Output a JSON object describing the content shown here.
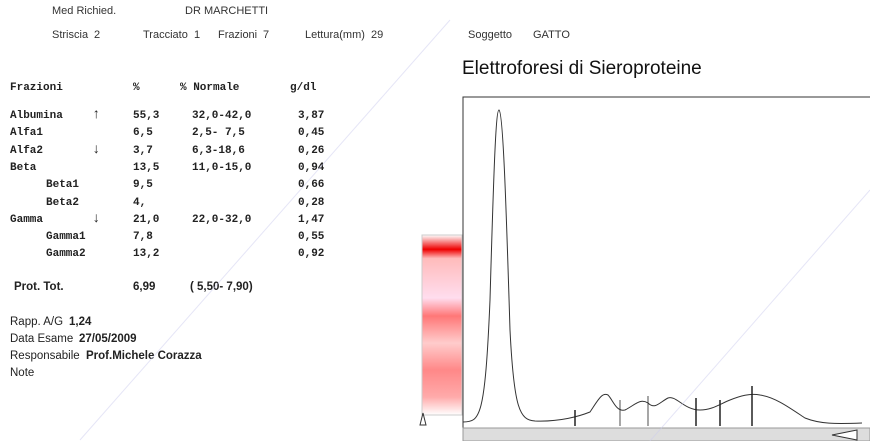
{
  "header": {
    "clinic": "Med Richied.",
    "doctor": "DR MARCHETTI",
    "fields": [
      {
        "label": "Striscia",
        "value": "2"
      },
      {
        "label": "Tracciato",
        "value": "1"
      },
      {
        "label": "Frazioni",
        "value": "7"
      },
      {
        "label": "Lettura(mm)",
        "value": "29"
      }
    ],
    "subject_label": "Soggetto",
    "subject": "GATTO"
  },
  "title": "Elettroforesi di Sieroproteine",
  "table": {
    "columns": [
      "Frazioni",
      "%",
      "% Normale",
      "g/dl"
    ],
    "rows": [
      {
        "name": "Albumina",
        "flag": "↑",
        "pct": "55,3",
        "normal": "32,0-42,0",
        "gdl": "3,87"
      },
      {
        "name": "Alfa1",
        "pct": "6,5",
        "normal": "2,5- 7,5",
        "gdl": "0,45"
      },
      {
        "name": "Alfa2",
        "flag": "↓",
        "pct": "3,7",
        "normal": "6,3-18,6",
        "gdl": "0,26"
      },
      {
        "name": "Beta",
        "pct": "13,5",
        "normal": "11,0-15,0",
        "gdl": "0,94"
      },
      {
        "name": "Beta1",
        "sub": true,
        "pct": "9,5",
        "gdl": "0,66"
      },
      {
        "name": "Beta2",
        "sub": true,
        "pct": "4,",
        "gdl": "0,28"
      },
      {
        "name": "Gamma",
        "flag": "↓",
        "pct": "21,0",
        "normal": "22,0-32,0",
        "gdl": "1,47"
      },
      {
        "name": "Gamma1",
        "sub": true,
        "pct": "7,8",
        "gdl": "0,55"
      },
      {
        "name": "Gamma2",
        "sub": true,
        "pct": "13,2",
        "gdl": "0,92"
      }
    ]
  },
  "total": {
    "label": "Prot. Tot.",
    "value": "6,99",
    "range": "( 5,50- 7,90)"
  },
  "footer": [
    {
      "label": "Rapp. A/G",
      "value": "1,24"
    },
    {
      "label": "Data Esame",
      "value": "27/05/2009"
    },
    {
      "label": "Responsabile",
      "value": "Prof.Michele Corazza"
    },
    {
      "label": "Note"
    }
  ]
}
